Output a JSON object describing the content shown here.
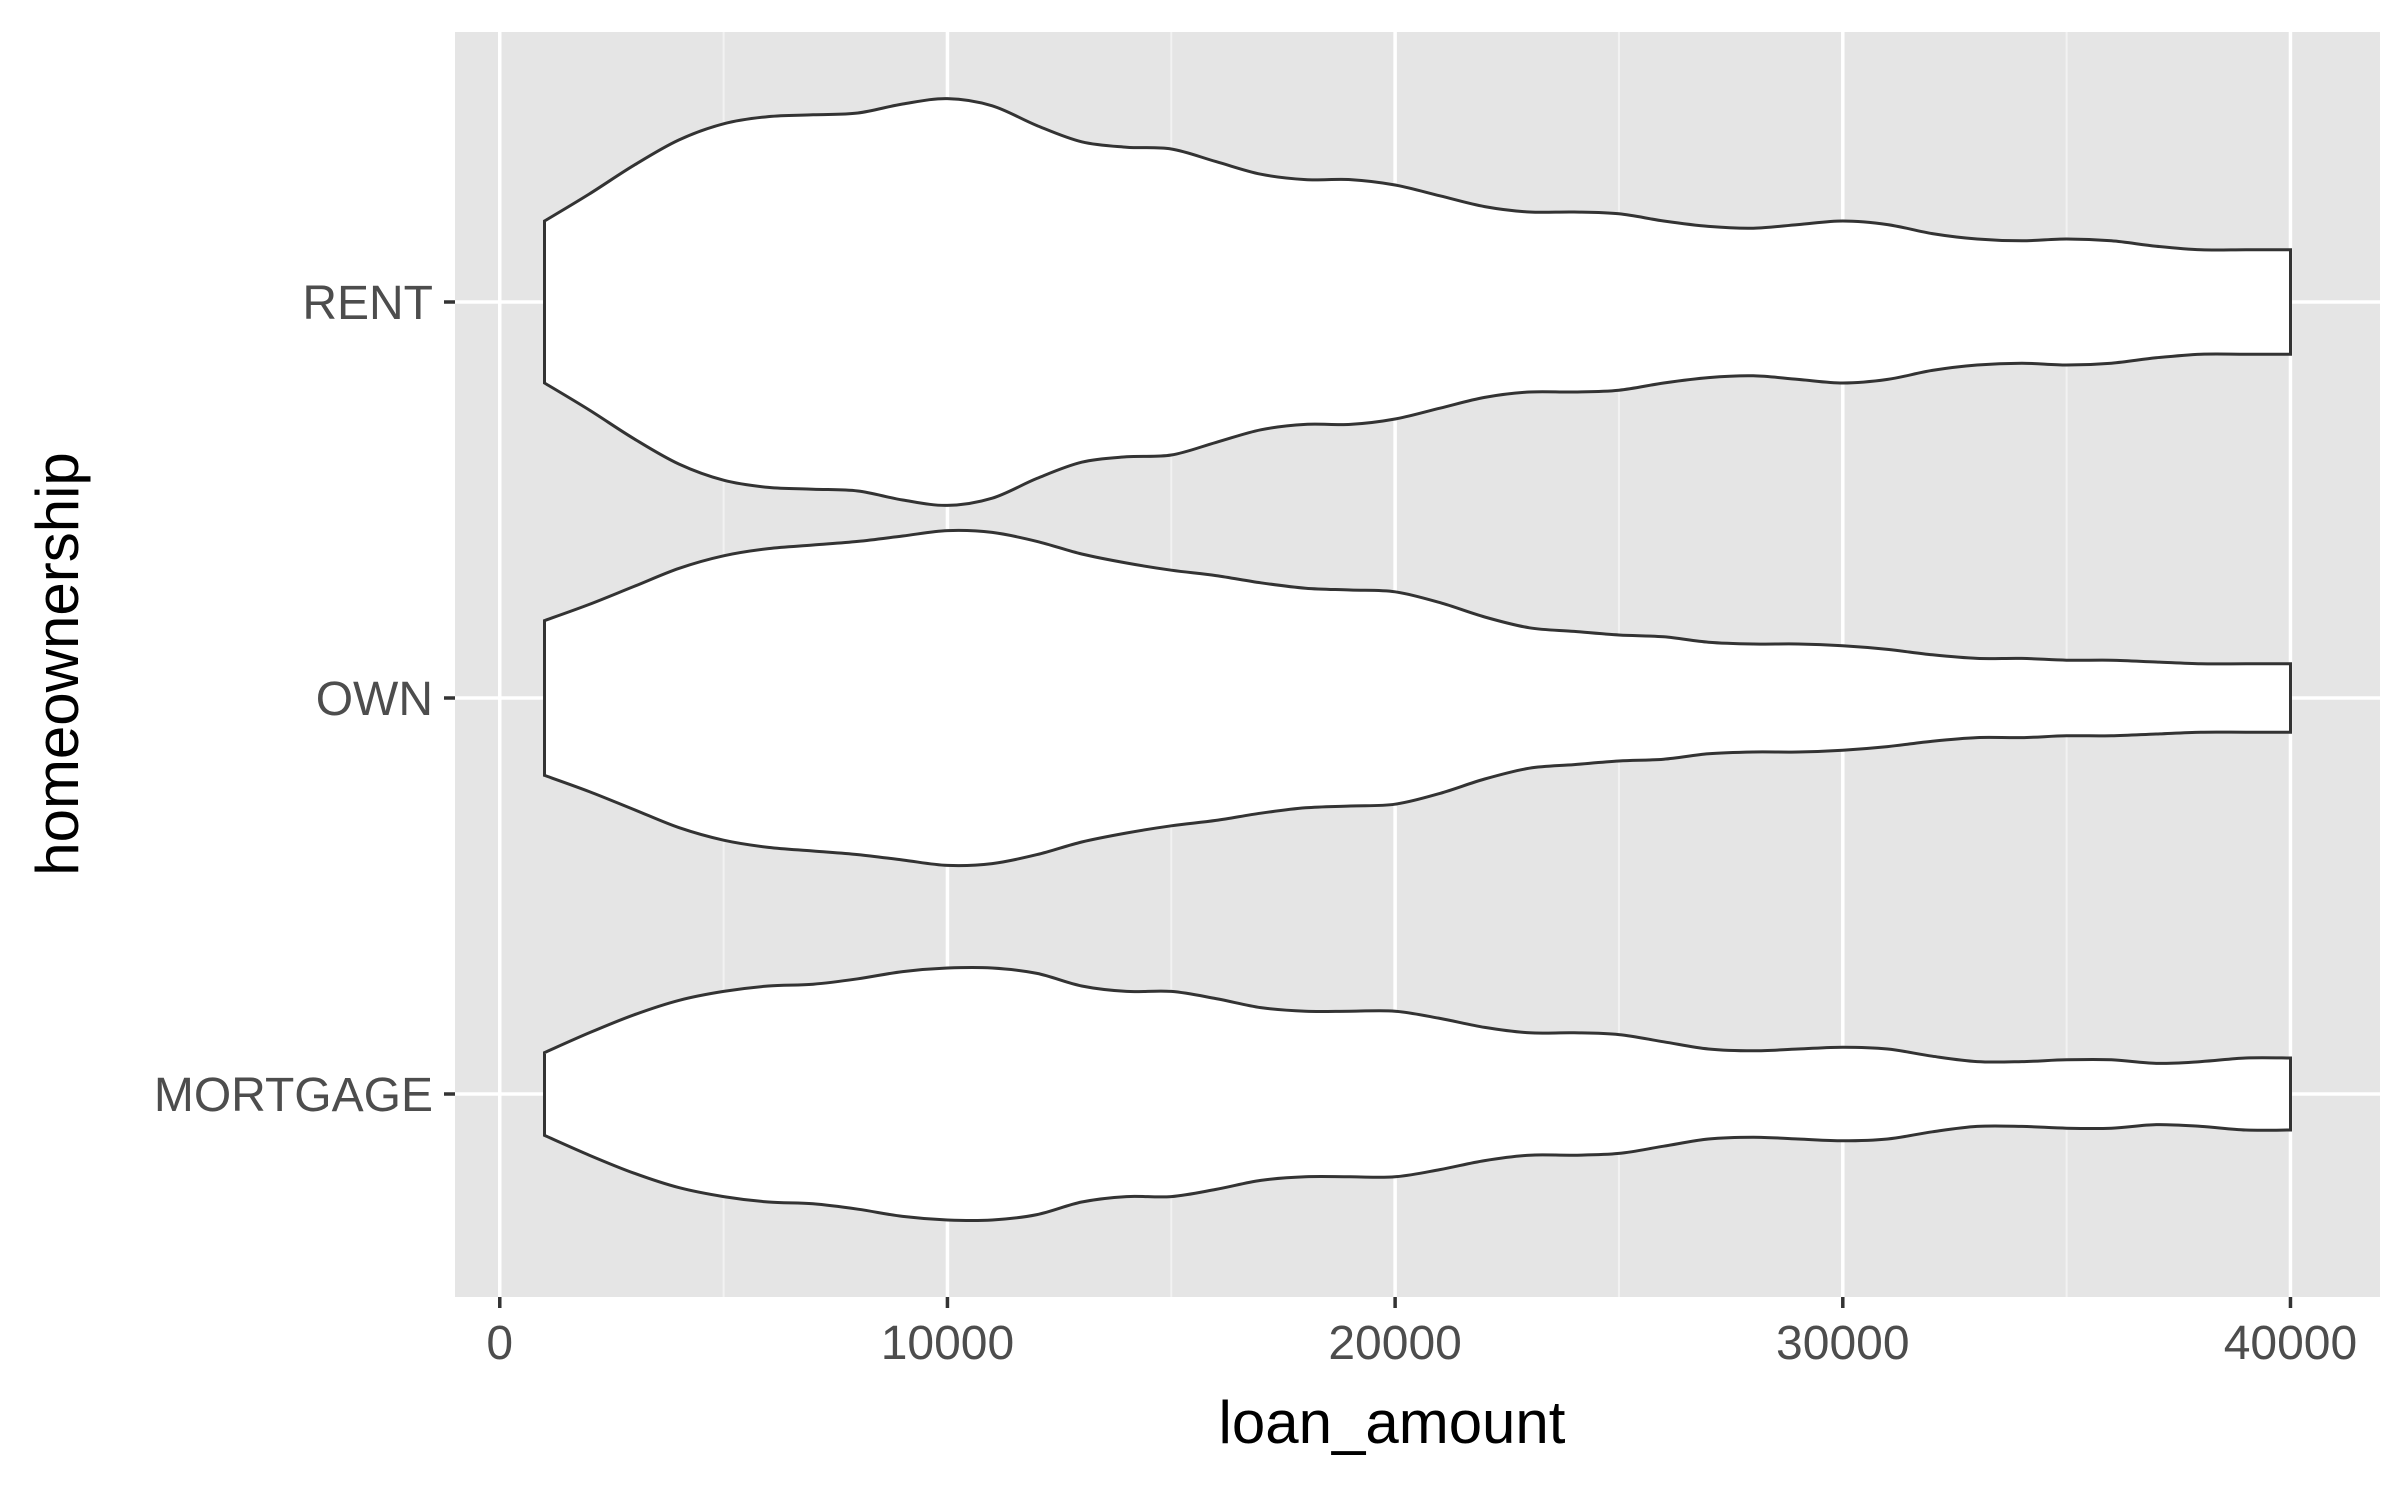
{
  "chart_data": {
    "type": "violin",
    "orientation": "horizontal",
    "xlabel": "loan_amount",
    "ylabel": "homeownership",
    "xlim": [
      -1000,
      42000
    ],
    "x_ticks": [
      0,
      10000,
      20000,
      30000,
      40000
    ],
    "x_tick_labels": [
      "0",
      "10000",
      "20000",
      "30000",
      "40000"
    ],
    "categories": [
      "RENT",
      "OWN",
      "MORTGAGE"
    ],
    "grid": true,
    "legend": "none",
    "colors": {
      "panel_background": "#e5e5e5",
      "grid_major": "#ffffff",
      "violin_fill": "#ffffff",
      "violin_outline": "#333333",
      "tick_label": "#4d4d4d",
      "axis_title": "#000000"
    },
    "series": [
      {
        "category": "RENT",
        "x_range": [
          1000,
          40000
        ],
        "profile": [
          [
            1000,
            0.45
          ],
          [
            2000,
            0.6
          ],
          [
            3000,
            0.76
          ],
          [
            4000,
            0.9
          ],
          [
            5000,
            0.99
          ],
          [
            6000,
            1.03
          ],
          [
            7000,
            1.04
          ],
          [
            8000,
            1.05
          ],
          [
            9000,
            1.1
          ],
          [
            10000,
            1.13
          ],
          [
            11000,
            1.09
          ],
          [
            12000,
            0.98
          ],
          [
            13000,
            0.89
          ],
          [
            14000,
            0.86
          ],
          [
            15000,
            0.85
          ],
          [
            16000,
            0.78
          ],
          [
            17000,
            0.71
          ],
          [
            18000,
            0.68
          ],
          [
            19000,
            0.68
          ],
          [
            20000,
            0.65
          ],
          [
            21000,
            0.59
          ],
          [
            22000,
            0.53
          ],
          [
            23000,
            0.5
          ],
          [
            24000,
            0.5
          ],
          [
            25000,
            0.49
          ],
          [
            26000,
            0.45
          ],
          [
            27000,
            0.42
          ],
          [
            28000,
            0.41
          ],
          [
            29000,
            0.43
          ],
          [
            30000,
            0.45
          ],
          [
            31000,
            0.43
          ],
          [
            32000,
            0.38
          ],
          [
            33000,
            0.35
          ],
          [
            34000,
            0.34
          ],
          [
            35000,
            0.35
          ],
          [
            36000,
            0.34
          ],
          [
            37000,
            0.31
          ],
          [
            38000,
            0.29
          ],
          [
            39000,
            0.29
          ],
          [
            40000,
            0.29
          ]
        ]
      },
      {
        "category": "OWN",
        "x_range": [
          1000,
          40000
        ],
        "profile": [
          [
            1000,
            0.43
          ],
          [
            2000,
            0.52
          ],
          [
            3000,
            0.62
          ],
          [
            4000,
            0.72
          ],
          [
            5000,
            0.79
          ],
          [
            6000,
            0.83
          ],
          [
            7000,
            0.85
          ],
          [
            8000,
            0.87
          ],
          [
            9000,
            0.9
          ],
          [
            10000,
            0.93
          ],
          [
            11000,
            0.92
          ],
          [
            12000,
            0.87
          ],
          [
            13000,
            0.8
          ],
          [
            14000,
            0.75
          ],
          [
            15000,
            0.71
          ],
          [
            16000,
            0.68
          ],
          [
            17000,
            0.64
          ],
          [
            18000,
            0.61
          ],
          [
            19000,
            0.6
          ],
          [
            20000,
            0.59
          ],
          [
            21000,
            0.53
          ],
          [
            22000,
            0.45
          ],
          [
            23000,
            0.39
          ],
          [
            24000,
            0.37
          ],
          [
            25000,
            0.35
          ],
          [
            26000,
            0.34
          ],
          [
            27000,
            0.31
          ],
          [
            28000,
            0.3
          ],
          [
            29000,
            0.3
          ],
          [
            30000,
            0.29
          ],
          [
            31000,
            0.27
          ],
          [
            32000,
            0.24
          ],
          [
            33000,
            0.22
          ],
          [
            34000,
            0.22
          ],
          [
            35000,
            0.21
          ],
          [
            36000,
            0.21
          ],
          [
            37000,
            0.2
          ],
          [
            38000,
            0.19
          ],
          [
            39000,
            0.19
          ],
          [
            40000,
            0.19
          ]
        ]
      },
      {
        "category": "MORTGAGE",
        "x_range": [
          1000,
          40000
        ],
        "profile": [
          [
            1000,
            0.23
          ],
          [
            2000,
            0.34
          ],
          [
            3000,
            0.44
          ],
          [
            4000,
            0.52
          ],
          [
            5000,
            0.57
          ],
          [
            6000,
            0.6
          ],
          [
            7000,
            0.61
          ],
          [
            8000,
            0.64
          ],
          [
            9000,
            0.68
          ],
          [
            10000,
            0.7
          ],
          [
            11000,
            0.7
          ],
          [
            12000,
            0.67
          ],
          [
            13000,
            0.6
          ],
          [
            14000,
            0.57
          ],
          [
            15000,
            0.57
          ],
          [
            16000,
            0.53
          ],
          [
            17000,
            0.48
          ],
          [
            18000,
            0.46
          ],
          [
            19000,
            0.46
          ],
          [
            20000,
            0.46
          ],
          [
            21000,
            0.42
          ],
          [
            22000,
            0.37
          ],
          [
            23000,
            0.34
          ],
          [
            24000,
            0.34
          ],
          [
            25000,
            0.33
          ],
          [
            26000,
            0.29
          ],
          [
            27000,
            0.25
          ],
          [
            28000,
            0.24
          ],
          [
            29000,
            0.25
          ],
          [
            30000,
            0.26
          ],
          [
            31000,
            0.25
          ],
          [
            32000,
            0.21
          ],
          [
            33000,
            0.18
          ],
          [
            34000,
            0.18
          ],
          [
            35000,
            0.19
          ],
          [
            36000,
            0.19
          ],
          [
            37000,
            0.17
          ],
          [
            38000,
            0.18
          ],
          [
            39000,
            0.2
          ],
          [
            40000,
            0.2
          ]
        ]
      }
    ]
  }
}
